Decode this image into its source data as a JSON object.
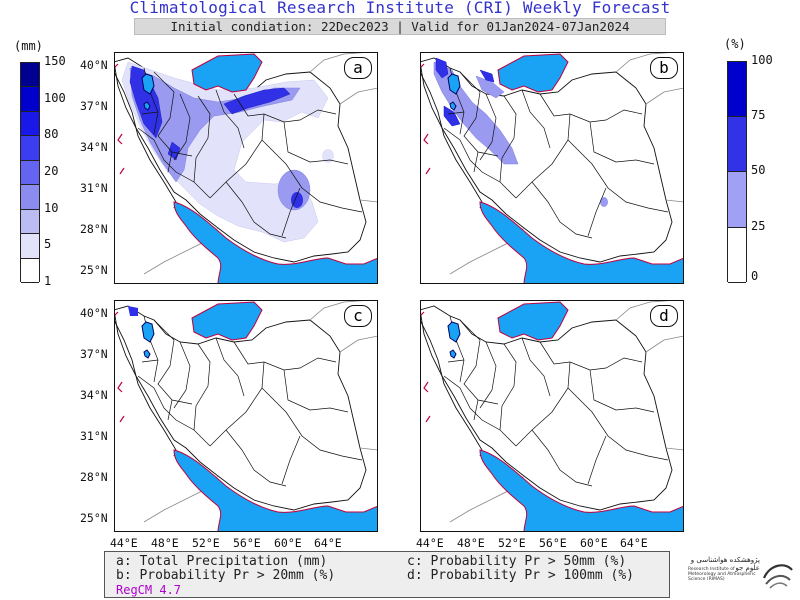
{
  "header": {
    "title": "Climatological Research Institute (CRI) Weekly Forecast",
    "subtitle": "Initial condiation: 22Dec2023 | Valid for 01Jan2024-07Jan2024"
  },
  "legend_precip": {
    "unit": "(mm)",
    "ticks": [
      "150",
      "100",
      "80",
      "20",
      "10",
      "5",
      "1"
    ],
    "colors": [
      "#000090",
      "#0000cc",
      "#1818e8",
      "#3c3cf0",
      "#6464f0",
      "#8c8cf0",
      "#bcbcf4",
      "#e2e2fa",
      "#ffffff"
    ]
  },
  "legend_prob": {
    "unit": "(%)",
    "ticks": [
      "100",
      "75",
      "50",
      "25",
      "0"
    ],
    "colors": [
      "#0000cc",
      "#3232e6",
      "#a0a0f4",
      "#ffffff"
    ]
  },
  "panels": [
    {
      "letter": "a"
    },
    {
      "letter": "b"
    },
    {
      "letter": "c"
    },
    {
      "letter": "d"
    }
  ],
  "axes": {
    "lat_labels": [
      "40°N",
      "37°N",
      "34°N",
      "31°N",
      "28°N",
      "25°N"
    ],
    "lon_labels": [
      "44°E",
      "48°E",
      "52°E",
      "56°E",
      "60°E",
      "64°E"
    ]
  },
  "colors": {
    "water": "#1aa3f5",
    "coast": "#c0003c",
    "boundary": "#111111",
    "light_blue": "#e2e2fa",
    "mid_blue": "#9a9af0",
    "dark_blue": "#3030e6"
  },
  "notes": {
    "a": "a: Total Precipitation (mm)",
    "b": "b: Probability Pr > 20mm (%)",
    "c": "c: Probability Pr > 50mm (%)",
    "d": "d: Probability Pr > 100mm (%)",
    "model": "RegCM 4.7"
  },
  "logo": {
    "title": "پژوهشکده هواشناسی و علوم جو",
    "subtitle": "Research Institute of Meteorology and Atmospheric Science (RIMAS)"
  }
}
